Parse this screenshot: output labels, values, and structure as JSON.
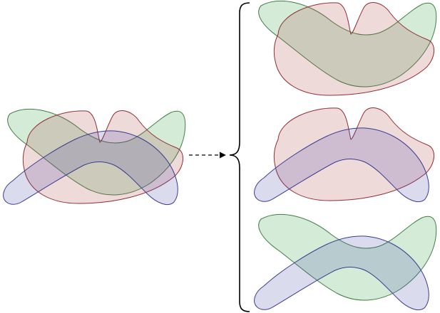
{
  "diagram": {
    "colors": {
      "green_fill": "#2a9d3a",
      "green_stroke": "#3f7d45",
      "red_fill": "#b04848",
      "red_stroke": "#8f2e33",
      "blue_fill": "#4a4aa8",
      "blue_stroke": "#3b3b8f",
      "ink": "#000000"
    },
    "fill_opacity": 0.2,
    "groups": [
      {
        "id": "combined",
        "shapes": [
          "green",
          "red",
          "blue"
        ]
      },
      {
        "id": "pair-green-red",
        "shapes": [
          "green",
          "red"
        ]
      },
      {
        "id": "pair-red-blue",
        "shapes": [
          "red",
          "blue"
        ]
      },
      {
        "id": "pair-green-blue",
        "shapes": [
          "green",
          "blue"
        ]
      }
    ],
    "connector": {
      "style": "dashed-arrow"
    },
    "grouping": {
      "style": "curly-brace"
    }
  }
}
